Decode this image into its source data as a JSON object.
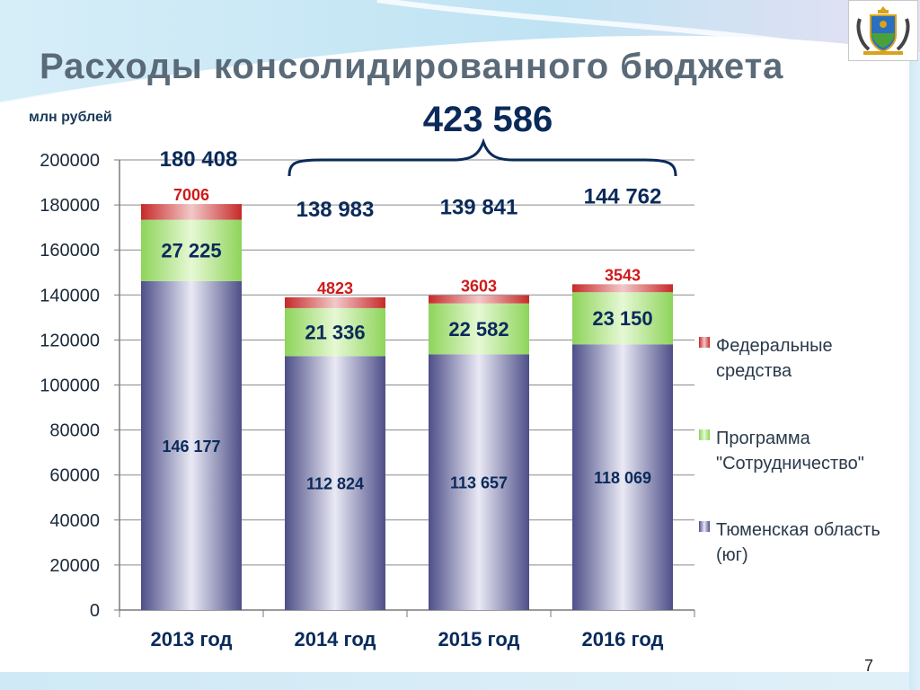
{
  "title": "Расходы консолидированного бюджета",
  "unit_label": "млн рублей",
  "page_number": "7",
  "grand_total": "423 586",
  "colors": {
    "tyumen": "#56578f",
    "program": "#8ed45a",
    "federal": "#c62a2a",
    "text_dark": "#0a2a5a"
  },
  "chart_data": {
    "type": "bar",
    "stacked": true,
    "title": "Расходы консолидированного бюджета",
    "ylabel": "млн рублей",
    "xlabel": "",
    "ylim": [
      0,
      200000
    ],
    "yticks": [
      0,
      20000,
      40000,
      60000,
      80000,
      100000,
      120000,
      140000,
      160000,
      180000,
      200000
    ],
    "grid": true,
    "legend_position": "right",
    "categories": [
      "2013 год",
      "2014 год",
      "2015 год",
      "2016 год"
    ],
    "series": [
      {
        "name": "Тюменская область (юг)",
        "values": [
          146177,
          112824,
          113657,
          118069
        ],
        "labels": [
          "146 177",
          "112 824",
          "113 657",
          "118 069"
        ]
      },
      {
        "name": "Программа \"Сотрудничество\"",
        "values": [
          27225,
          21336,
          22582,
          23150
        ],
        "labels": [
          "27 225",
          "21 336",
          "22 582",
          "23 150"
        ]
      },
      {
        "name": "Федеральные средства",
        "values": [
          7006,
          4823,
          3603,
          3543
        ],
        "labels": [
          "7006",
          "4823",
          "3603",
          "3543"
        ]
      }
    ],
    "totals": [
      "180 408",
      "138 983",
      "139 841",
      "144 762"
    ],
    "legend": [
      {
        "lines": [
          "Федеральные",
          "средства"
        ]
      },
      {
        "lines": [
          "Программа",
          "\"Сотрудничество\""
        ]
      },
      {
        "lines": [
          "Тюменская область",
          "(юг)"
        ]
      }
    ]
  }
}
